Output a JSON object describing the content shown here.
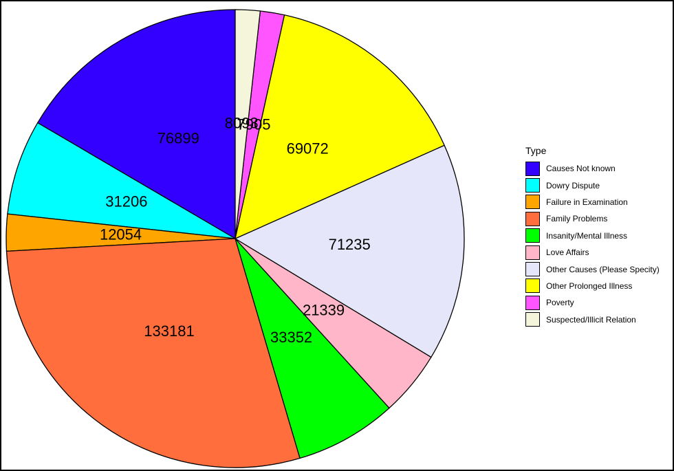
{
  "chart_data": {
    "type": "pie",
    "legend_title": "Type",
    "legend_position": "right",
    "slices": [
      {
        "label": "Causes Not known",
        "value": 76899,
        "color": "#3300FF"
      },
      {
        "label": "Dowry Dispute",
        "value": 31206,
        "color": "#00FFFF"
      },
      {
        "label": "Failure in Examination",
        "value": 12054,
        "color": "#FFA500"
      },
      {
        "label": "Family Problems",
        "value": 133181,
        "color": "#FF6E3C"
      },
      {
        "label": "Insanity/Mental Illness",
        "value": 33352,
        "color": "#00FF00"
      },
      {
        "label": "Love Affairs",
        "value": 21339,
        "color": "#FFB6C8"
      },
      {
        "label": "Other Causes (Please Specity)",
        "value": 71235,
        "color": "#E6E6FA"
      },
      {
        "label": "Other Prolonged Illness",
        "value": 69072,
        "color": "#FFFF00"
      },
      {
        "label": "Poverty",
        "value": 7905,
        "color": "#FF55FF"
      },
      {
        "label": "Suspected/Illicit Relation",
        "value": 8093,
        "color": "#F5F5DC"
      }
    ]
  }
}
